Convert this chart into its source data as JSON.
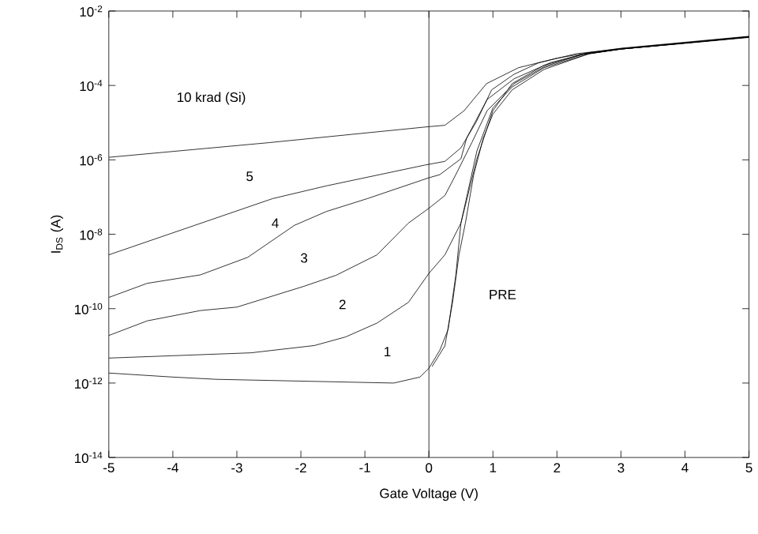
{
  "chart_data": {
    "type": "line",
    "xlabel": "Gate Voltage (V)",
    "ylabel": "I$_{DS}$ (A)",
    "log": "y",
    "grid": false,
    "legend": false,
    "marker": "none",
    "line_style": "solid",
    "xlim": [
      -5,
      5
    ],
    "xticks": [
      -5,
      -4,
      -3,
      -2,
      -1,
      0,
      1,
      2,
      3,
      4,
      5
    ],
    "ylim": [
      1e-14,
      0.01
    ],
    "yticks": [
      {
        "value": 1e-14,
        "label": "10$^{-14}$"
      },
      {
        "value": 1e-12,
        "label": "10$^{-12}$"
      },
      {
        "value": 1e-10,
        "label": "10$^{-10}$"
      },
      {
        "value": 1e-08,
        "label": "10$^{-8}$"
      },
      {
        "value": 1e-06,
        "label": "10$^{-6}$"
      },
      {
        "value": 0.0001,
        "label": "10$^{-4}$"
      },
      {
        "value": 0.01,
        "label": "10$^{-2}$"
      }
    ],
    "ref_lines": [
      {
        "axis": "x",
        "value": 0,
        "color": "#000000"
      }
    ],
    "series": [
      {
        "name": "10 krad (Si)",
        "color": "#000000",
        "x": [
          -5,
          -2.5,
          0,
          0.25,
          0.55,
          0.9,
          1.4,
          2,
          2.5,
          3,
          4,
          5
        ],
        "values": [
          1.17e-06,
          2.9e-06,
          7.8e-06,
          8.5e-06,
          2.1e-05,
          0.000112,
          0.0003,
          0.00054,
          0.00076,
          0.001,
          0.00145,
          0.0021
        ]
      },
      {
        "name": "5",
        "color": "#000000",
        "x": [
          -5,
          -2.44,
          -1.6,
          -0.07,
          0.25,
          0.5,
          0.74,
          0.98,
          1.33,
          1.72,
          2.3,
          3,
          4,
          5
        ],
        "values": [
          2.8e-09,
          9.1e-08,
          2e-07,
          7.2e-07,
          9.1e-07,
          2.1e-06,
          1.05e-05,
          7.6e-05,
          0.0002,
          0.00041,
          0.00071,
          0.00098,
          0.00141,
          0.00205
        ]
      },
      {
        "name": "4",
        "color": "#000000",
        "x": [
          -5,
          -4.4,
          -3.57,
          -2.83,
          -2.1,
          -1.6,
          -0.96,
          0,
          0.17,
          0.5,
          0.59,
          0.91,
          1.33,
          1.9,
          2.4,
          3,
          4,
          5
        ],
        "values": [
          2e-10,
          4.8e-10,
          8.1e-10,
          2.4e-09,
          1.74e-08,
          4.1e-08,
          9.1e-08,
          3.3e-07,
          4e-07,
          1.07e-06,
          3.9e-06,
          4.2e-05,
          0.000151,
          0.00041,
          0.00069,
          0.00095,
          0.00138,
          0.00204
        ]
      },
      {
        "name": "3",
        "color": "#000000",
        "x": [
          -5,
          -4.4,
          -3.57,
          -3,
          -1.95,
          -1.45,
          -0.81,
          -0.32,
          0,
          0.25,
          0.42,
          0.67,
          0.91,
          1.33,
          1.82,
          2.4,
          3,
          4,
          5
        ],
        "values": [
          1.9e-11,
          4.7e-11,
          8.9e-11,
          1.1e-10,
          4e-10,
          7.9e-10,
          2.8e-09,
          2e-08,
          5e-08,
          1.1e-07,
          4e-07,
          2.9e-06,
          2.1e-05,
          0.000112,
          0.00033,
          0.00068,
          0.00095,
          0.00138,
          0.002
        ]
      },
      {
        "name": "2",
        "color": "#000000",
        "x": [
          -5,
          -2.78,
          -1.79,
          -1.3,
          -0.81,
          -0.32,
          0,
          0.25,
          0.5,
          0.75,
          1.0,
          1.3,
          1.8,
          2.5,
          3,
          4,
          5
        ],
        "values": [
          4.7e-12,
          6.5e-12,
          1.02e-11,
          1.74e-11,
          4.1e-11,
          1.48e-10,
          8.9e-10,
          2.8e-09,
          2e-08,
          1.07e-06,
          2.1e-05,
          0.000112,
          0.00035,
          0.00076,
          0.00095,
          0.00138,
          0.002
        ]
      },
      {
        "name": "1",
        "color": "#000000",
        "x": [
          -5,
          -4,
          -3.32,
          -0.55,
          -0.14,
          0,
          0.17,
          0.3,
          0.42,
          0.5,
          0.75,
          1.0,
          1.3,
          1.8,
          2.5,
          3,
          4,
          5
        ],
        "values": [
          1.86e-12,
          1.45e-12,
          1.26e-12,
          1e-12,
          1.45e-12,
          2.5e-12,
          7.6e-12,
          2.75e-11,
          7.9e-10,
          2e-08,
          1.74e-06,
          2.5e-05,
          9.1e-05,
          0.0003,
          0.00071,
          0.00095,
          0.00138,
          0.002
        ]
      },
      {
        "name": "PRE",
        "color": "#000000",
        "x": [
          0.05,
          0.25,
          0.37,
          0.47,
          0.57,
          0.7,
          0.85,
          1.0,
          1.3,
          1.8,
          2.5,
          3,
          4,
          5
        ],
        "values": [
          2.8e-12,
          1e-11,
          1.48e-10,
          2.8e-09,
          2e-08,
          4e-07,
          3.9e-06,
          1.7e-05,
          7.6e-05,
          0.00027,
          0.00071,
          0.00095,
          0.00135,
          0.00195
        ]
      }
    ]
  }
}
